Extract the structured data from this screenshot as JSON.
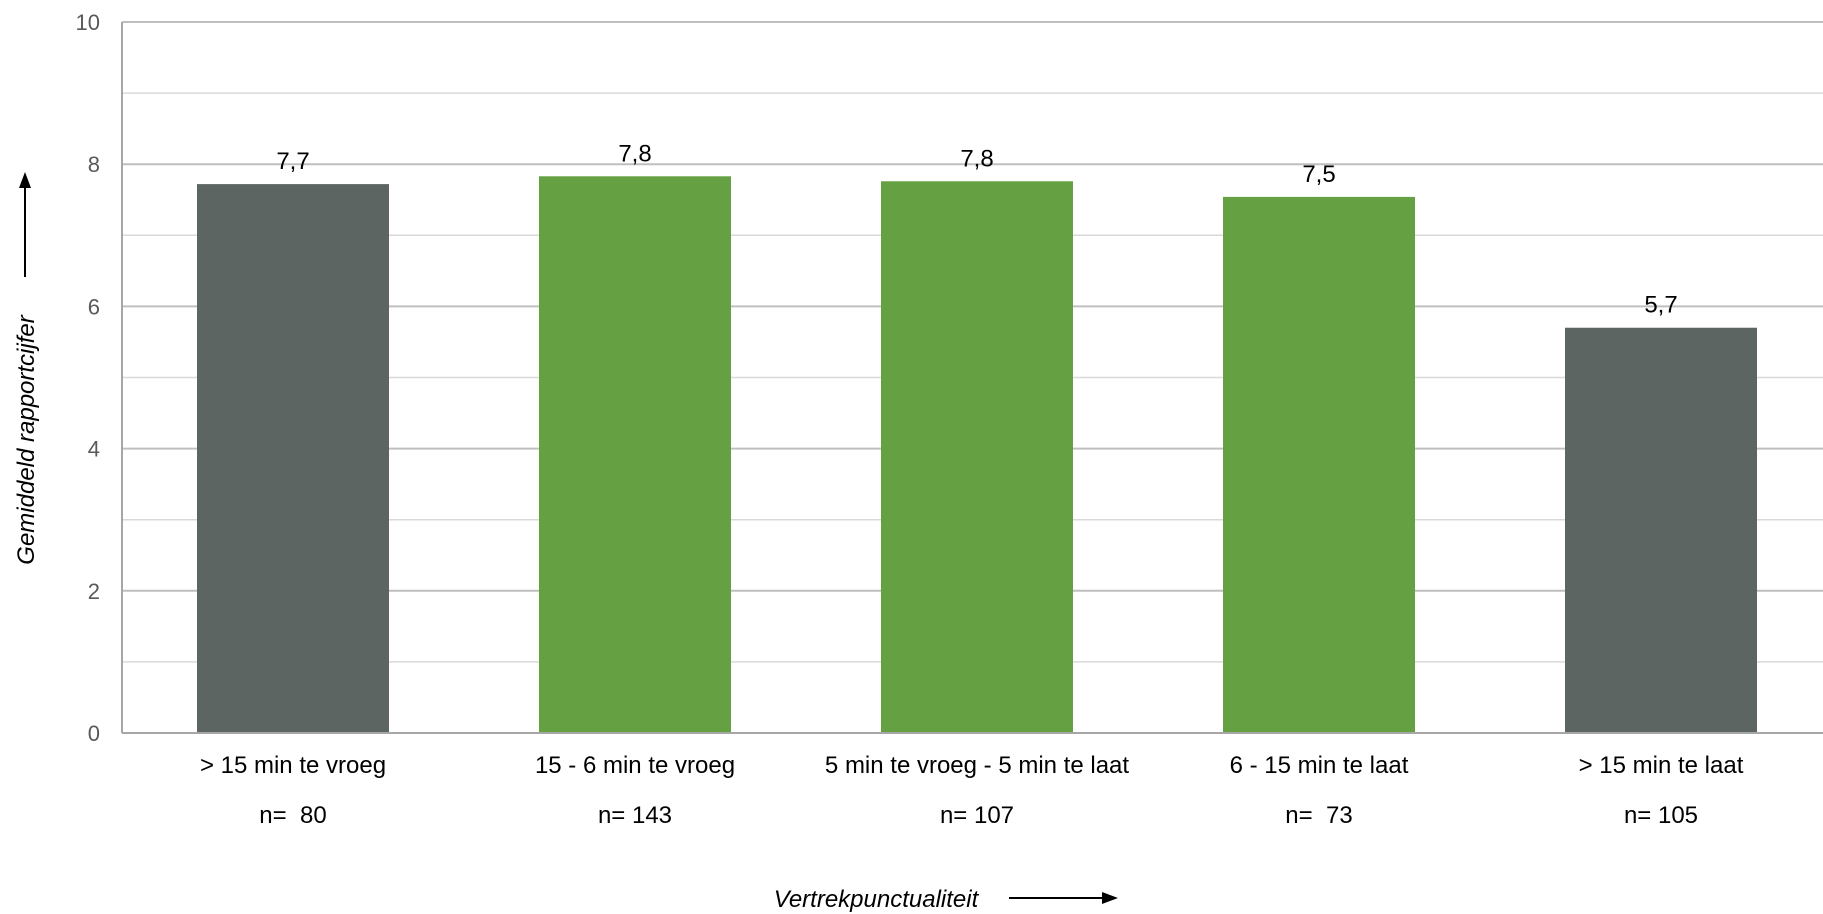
{
  "chart_data": {
    "type": "bar",
    "categories": [
      "> 15 min te vroeg",
      "15 - 6 min te vroeg",
      "5 min te vroeg - 5 min te laat",
      "6 - 15 min te laat",
      "> 15 min te laat"
    ],
    "values": [
      7.72,
      7.83,
      7.76,
      7.54,
      5.7
    ],
    "value_labels": [
      "7,7",
      "7,8",
      "7,8",
      "7,5",
      "5,7"
    ],
    "sample_sizes": [
      "n=  80",
      "n= 143",
      "n= 107",
      "n=  73",
      "n= 105"
    ],
    "bar_colors": [
      "#5c6562",
      "#65a042",
      "#65a042",
      "#65a042",
      "#5c6562"
    ],
    "xlabel": "Vertrekpunctualiteit",
    "ylabel": "Gemiddeld rapportcijfer",
    "ylim": [
      0,
      10
    ],
    "yticks": [
      "0",
      "2",
      "4",
      "6",
      "8",
      "10"
    ],
    "ytick_values": [
      0,
      2,
      4,
      6,
      8,
      10
    ],
    "minor_gridlines": [
      1,
      3,
      5,
      7,
      9
    ],
    "grid": true,
    "legend": "none",
    "colors": {
      "major_grid": "#bfbfbf",
      "minor_grid": "#d9d9d9",
      "axis": "#a6a6a6",
      "tick_text": "#595959"
    }
  }
}
